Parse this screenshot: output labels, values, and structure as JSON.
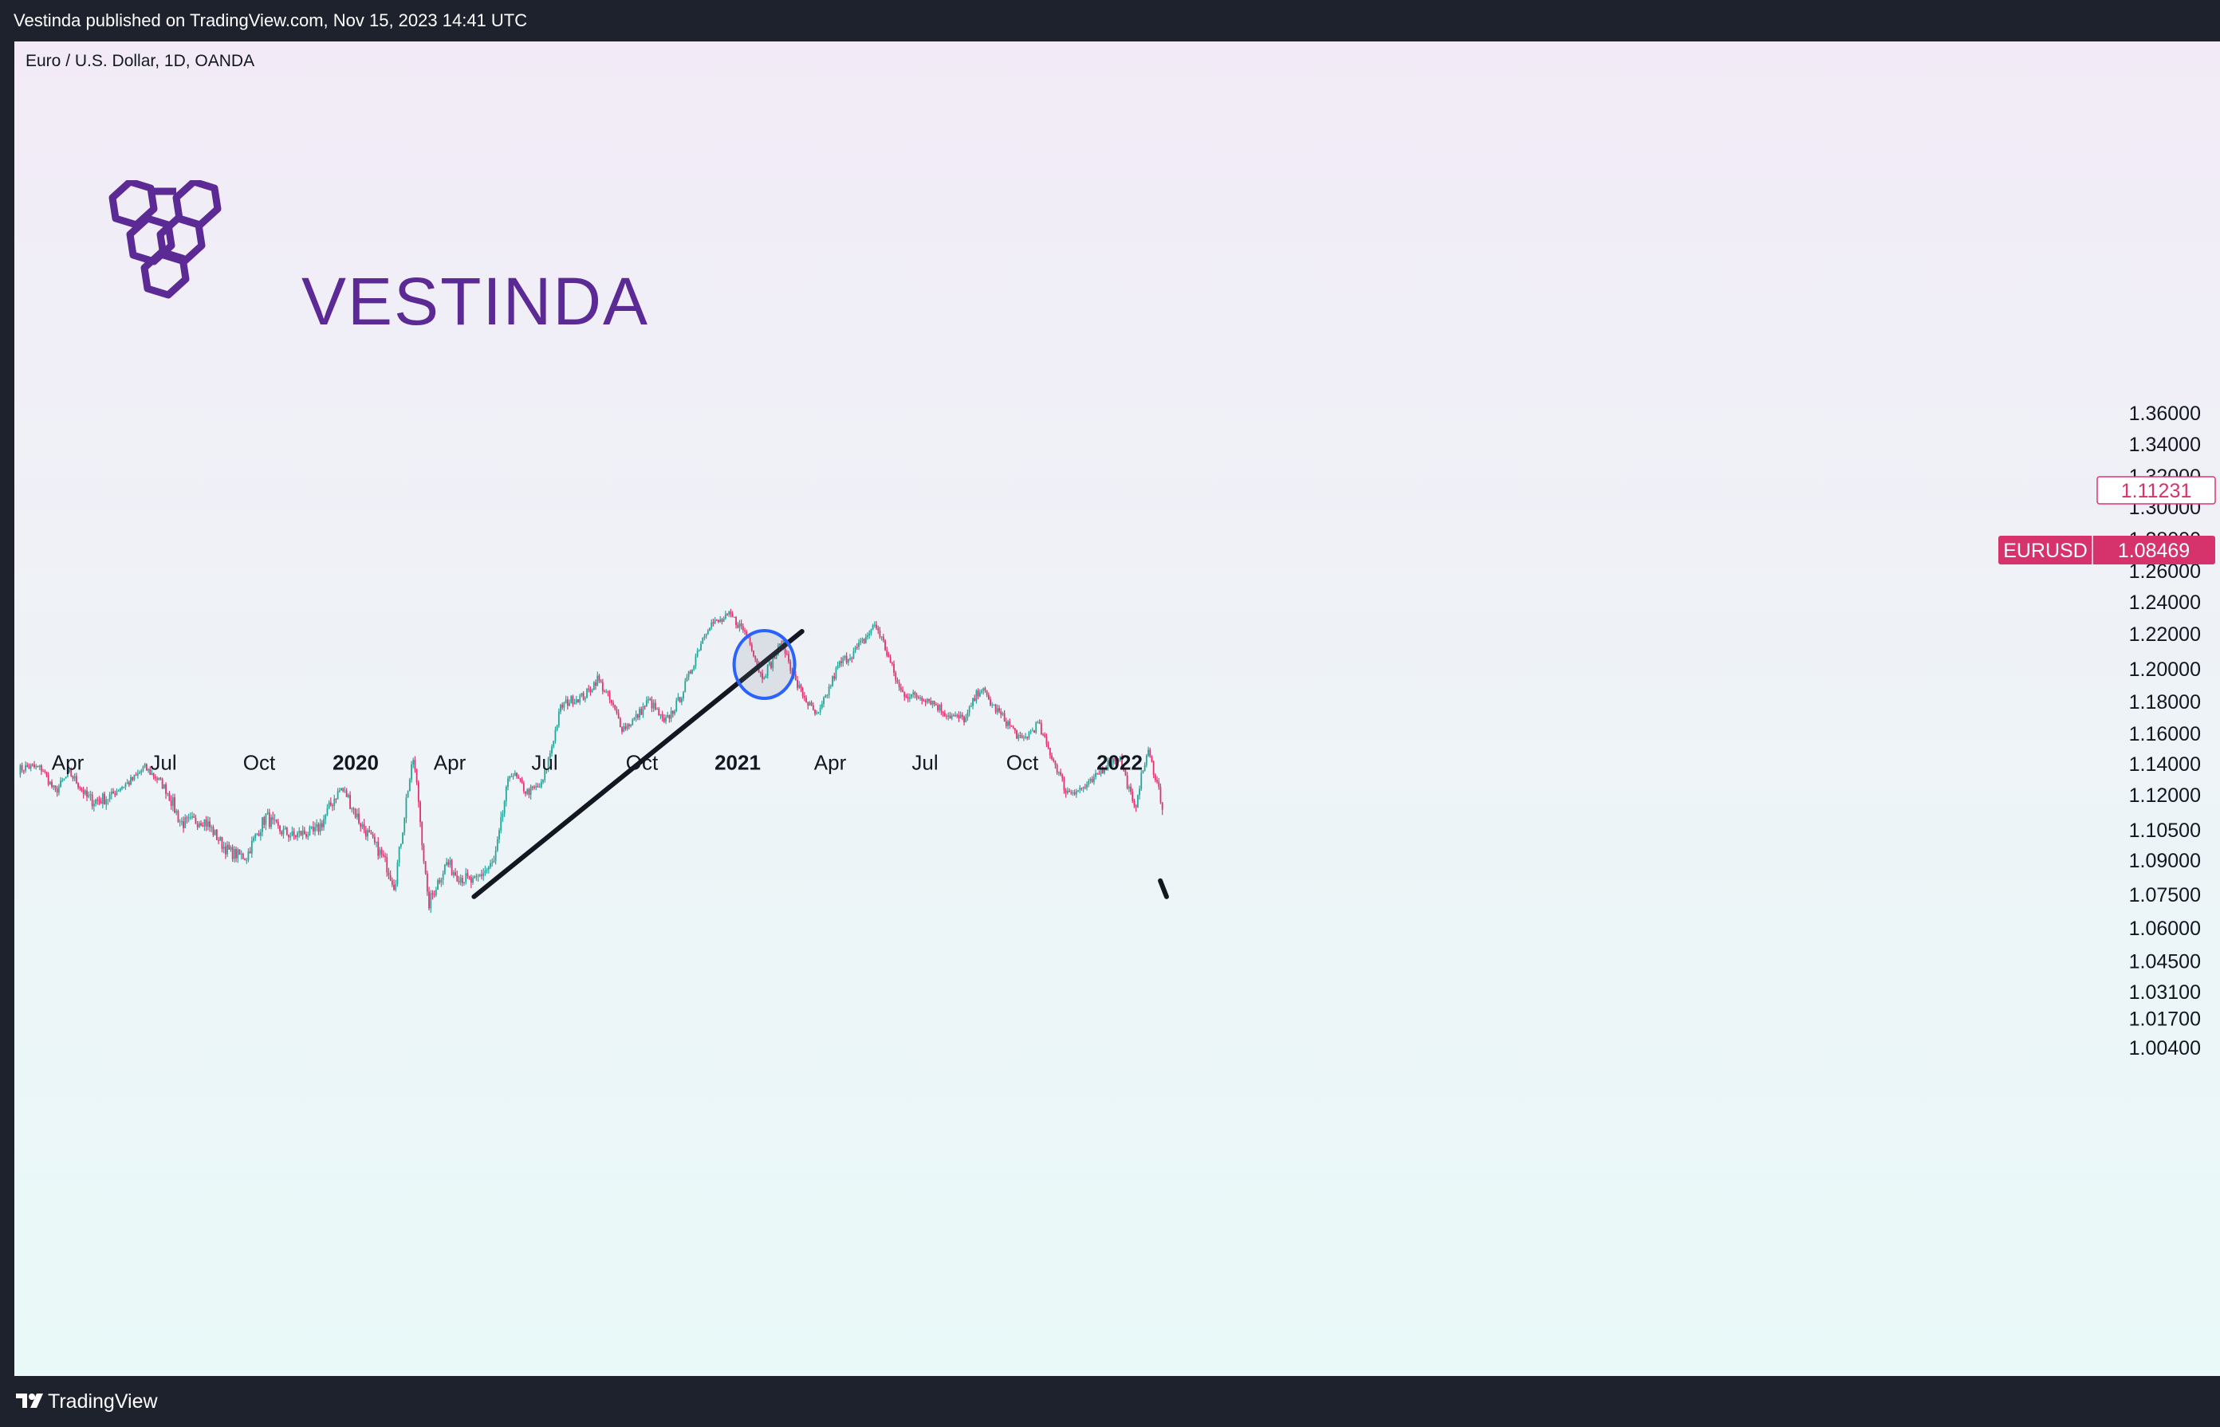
{
  "header": {
    "publisher_line": "Vestinda published on TradingView.com, Nov 15, 2023 14:41 UTC"
  },
  "chart_header": {
    "symbol_line": "Euro / U.S. Dollar, 1D, OANDA"
  },
  "logo": {
    "brand_name": "VESTINDA",
    "color": "#5b2a94"
  },
  "footer": {
    "brand": "TradingView"
  },
  "colors": {
    "up_candle": "#26a69a",
    "down_candle": "#e0326e",
    "trendline": "#131722",
    "highlight_circle": "#2962ff",
    "price_tag": "#d6336c"
  },
  "chart_data": {
    "type": "candlestick",
    "title": "Euro / U.S. Dollar, 1D, OANDA",
    "symbol": "EURUSD",
    "y_ticks": [
      "1.36000",
      "1.34000",
      "1.32000",
      "1.30000",
      "1.28000",
      "1.26000",
      "1.24000",
      "1.22000",
      "1.20000",
      "1.18000",
      "1.16000",
      "1.14000",
      "1.12000",
      "1.10500",
      "1.09000",
      "1.07500",
      "1.06000",
      "1.04500",
      "1.03100",
      "1.01700",
      "1.00400"
    ],
    "x_ticks": [
      {
        "label": "Apr",
        "bold": false
      },
      {
        "label": "Jul",
        "bold": false
      },
      {
        "label": "Oct",
        "bold": false
      },
      {
        "label": "2020",
        "bold": true
      },
      {
        "label": "Apr",
        "bold": false
      },
      {
        "label": "Jul",
        "bold": false
      },
      {
        "label": "Oct",
        "bold": false
      },
      {
        "label": "2021",
        "bold": true
      },
      {
        "label": "Apr",
        "bold": false
      },
      {
        "label": "Jul",
        "bold": false
      },
      {
        "label": "Oct",
        "bold": false
      },
      {
        "label": "2022",
        "bold": true
      }
    ],
    "price_path": [
      [
        "2019-02-25",
        1.135
      ],
      [
        "2019-03-20",
        1.138
      ],
      [
        "2019-04-01",
        1.123
      ],
      [
        "2019-04-15",
        1.132
      ],
      [
        "2019-05-01",
        1.12
      ],
      [
        "2019-05-25",
        1.118
      ],
      [
        "2019-06-10",
        1.128
      ],
      [
        "2019-06-25",
        1.139
      ],
      [
        "2019-07-10",
        1.127
      ],
      [
        "2019-07-30",
        1.11
      ],
      [
        "2019-08-20",
        1.108
      ],
      [
        "2019-09-10",
        1.098
      ],
      [
        "2019-10-01",
        1.09
      ],
      [
        "2019-10-20",
        1.112
      ],
      [
        "2019-11-15",
        1.1
      ],
      [
        "2019-12-05",
        1.105
      ],
      [
        "2019-12-31",
        1.122
      ],
      [
        "2020-01-25",
        1.105
      ],
      [
        "2020-02-20",
        1.078
      ],
      [
        "2020-03-09",
        1.145
      ],
      [
        "2020-03-23",
        1.068
      ],
      [
        "2020-04-10",
        1.09
      ],
      [
        "2020-05-06",
        1.078
      ],
      [
        "2020-05-25",
        1.09
      ],
      [
        "2020-06-10",
        1.135
      ],
      [
        "2020-06-25",
        1.12
      ],
      [
        "2020-07-10",
        1.128
      ],
      [
        "2020-07-28",
        1.175
      ],
      [
        "2020-08-20",
        1.185
      ],
      [
        "2020-09-01",
        1.195
      ],
      [
        "2020-09-25",
        1.163
      ],
      [
        "2020-10-20",
        1.18
      ],
      [
        "2020-11-04",
        1.165
      ],
      [
        "2020-11-20",
        1.185
      ],
      [
        "2020-12-17",
        1.225
      ],
      [
        "2021-01-06",
        1.233
      ],
      [
        "2021-01-25",
        1.215
      ],
      [
        "2021-02-05",
        1.196
      ],
      [
        "2021-02-25",
        1.215
      ],
      [
        "2021-03-10",
        1.19
      ],
      [
        "2021-03-31",
        1.172
      ],
      [
        "2021-04-20",
        1.2
      ],
      [
        "2021-05-10",
        1.215
      ],
      [
        "2021-05-25",
        1.225
      ],
      [
        "2021-06-18",
        1.188
      ],
      [
        "2021-07-20",
        1.178
      ],
      [
        "2021-08-20",
        1.168
      ],
      [
        "2021-09-03",
        1.188
      ],
      [
        "2021-09-20",
        1.175
      ],
      [
        "2021-10-12",
        1.153
      ],
      [
        "2021-10-28",
        1.168
      ],
      [
        "2021-11-24",
        1.12
      ],
      [
        "2021-12-20",
        1.13
      ],
      [
        "2022-01-14",
        1.145
      ],
      [
        "2022-01-28",
        1.114
      ],
      [
        "2022-02-10",
        1.147
      ],
      [
        "2022-02-25",
        1.112
      ]
    ],
    "last_price_label": "1.11231",
    "symbol_price_label": "1.08469",
    "annotations": {
      "trendline": {
        "from": [
          "2020-05-06",
          1.074
        ],
        "to": [
          "2021-03-16",
          1.2215
        ]
      },
      "trendline_stub": {
        "from": [
          "2022-02-22",
          1.081
        ],
        "to": [
          "2022-02-28",
          1.074
        ]
      },
      "circle": {
        "center": [
          "2021-02-08",
          1.2025
        ],
        "radius_x_days": 29,
        "radius_y_price": 0.0195
      }
    },
    "grid": false,
    "legend": "none"
  }
}
